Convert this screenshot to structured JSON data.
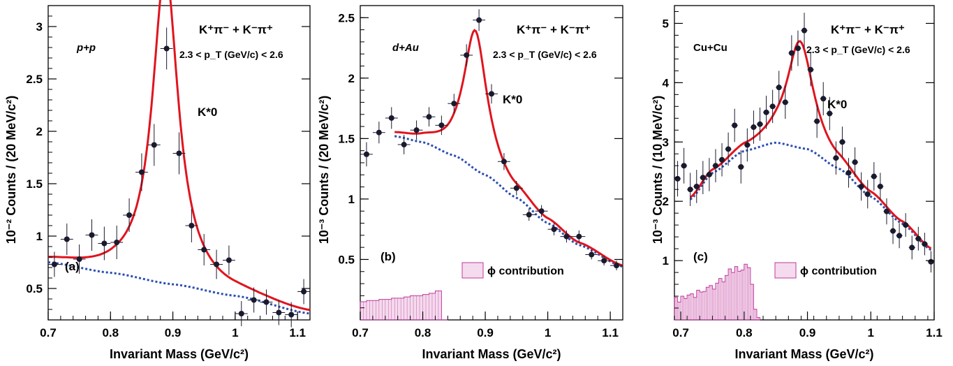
{
  "figure": {
    "colors": {
      "data": "#1a1a2e",
      "fit": "#e0141e",
      "background_fit": "#2b4eb0",
      "phi_hist": "#c03a9c"
    }
  },
  "chart_data": [
    {
      "type": "scatter",
      "panel_label": "(a)",
      "system": "p+p",
      "channel": "K⁺π⁻ + K⁻π⁺",
      "pt_range": "2.3 < p_T (GeV/c) < 2.6",
      "peak_label": "K*0",
      "xlabel": "Invariant Mass (GeV/c²)",
      "ylabel": "10⁻² Counts / (20 MeV/c²)",
      "xlim": [
        0.7,
        1.12
      ],
      "ylim": [
        0.2,
        3.2
      ],
      "xticks": [
        0.7,
        0.8,
        0.9,
        1.0,
        1.1
      ],
      "xtick_labels": [
        "0.7",
        "0.8",
        "0.9",
        "1",
        "1.1"
      ],
      "yticks": [
        0.5,
        1,
        1.5,
        2,
        2.5,
        3
      ],
      "ytick_labels": [
        "0.5",
        "1",
        "1.5",
        "2",
        "2.5",
        "3"
      ],
      "points": [
        {
          "x": 0.71,
          "y": 0.73,
          "err": 0.12
        },
        {
          "x": 0.73,
          "y": 0.97,
          "err": 0.15
        },
        {
          "x": 0.75,
          "y": 0.78,
          "err": 0.14
        },
        {
          "x": 0.77,
          "y": 1.01,
          "err": 0.15
        },
        {
          "x": 0.79,
          "y": 0.93,
          "err": 0.16
        },
        {
          "x": 0.81,
          "y": 0.94,
          "err": 0.16
        },
        {
          "x": 0.83,
          "y": 1.2,
          "err": 0.16
        },
        {
          "x": 0.85,
          "y": 1.61,
          "err": 0.18
        },
        {
          "x": 0.87,
          "y": 1.87,
          "err": 0.2
        },
        {
          "x": 0.89,
          "y": 2.79,
          "err": 0.2
        },
        {
          "x": 0.91,
          "y": 1.79,
          "err": 0.2
        },
        {
          "x": 0.93,
          "y": 1.1,
          "err": 0.16
        },
        {
          "x": 0.95,
          "y": 0.87,
          "err": 0.15
        },
        {
          "x": 0.97,
          "y": 0.73,
          "err": 0.14
        },
        {
          "x": 0.99,
          "y": 0.77,
          "err": 0.14
        },
        {
          "x": 1.01,
          "y": 0.26,
          "err": 0.12
        },
        {
          "x": 1.03,
          "y": 0.39,
          "err": 0.12
        },
        {
          "x": 1.05,
          "y": 0.37,
          "err": 0.12
        },
        {
          "x": 1.07,
          "y": 0.27,
          "err": 0.12
        },
        {
          "x": 1.09,
          "y": 0.25,
          "err": 0.12
        },
        {
          "x": 1.11,
          "y": 0.47,
          "err": 0.12
        }
      ],
      "fit": {
        "x_start": 0.7,
        "x_end": 1.12,
        "mass": 0.888,
        "width": 0.05,
        "amp": 3.0
      },
      "background": [
        [
          0.7,
          0.75
        ],
        [
          0.8,
          0.65
        ],
        [
          0.9,
          0.54
        ],
        [
          1.0,
          0.43
        ],
        [
          1.12,
          0.26
        ]
      ],
      "phi_hist": null,
      "phi_legend": ""
    },
    {
      "type": "scatter",
      "panel_label": "(b)",
      "system": "d+Au",
      "channel": "K⁺π⁻ + K⁻π⁺",
      "pt_range": "2.3 < p_T (GeV/c) < 2.6",
      "peak_label": "K*0",
      "xlabel": "Invariant Mass (GeV/c²)",
      "ylabel": "10⁻³ Counts / (20 MeV/c²)",
      "xlim": [
        0.7,
        1.12
      ],
      "ylim": [
        0.0,
        2.6
      ],
      "xticks": [
        0.7,
        0.8,
        0.9,
        1.0,
        1.1
      ],
      "xtick_labels": [
        "0.7",
        "0.8",
        "0.9",
        "1",
        "1.1"
      ],
      "yticks": [
        0.5,
        1,
        1.5,
        2,
        2.5
      ],
      "ytick_labels": [
        "0.5",
        "1",
        "1.5",
        "2",
        "2.5"
      ],
      "points": [
        {
          "x": 0.71,
          "y": 1.37,
          "err": 0.1
        },
        {
          "x": 0.73,
          "y": 1.55,
          "err": 0.09
        },
        {
          "x": 0.75,
          "y": 1.67,
          "err": 0.09
        },
        {
          "x": 0.77,
          "y": 1.45,
          "err": 0.08
        },
        {
          "x": 0.79,
          "y": 1.57,
          "err": 0.08
        },
        {
          "x": 0.81,
          "y": 1.68,
          "err": 0.08
        },
        {
          "x": 0.83,
          "y": 1.61,
          "err": 0.08
        },
        {
          "x": 0.85,
          "y": 1.79,
          "err": 0.08
        },
        {
          "x": 0.87,
          "y": 2.19,
          "err": 0.09
        },
        {
          "x": 0.89,
          "y": 2.48,
          "err": 0.09
        },
        {
          "x": 0.91,
          "y": 1.87,
          "err": 0.08
        },
        {
          "x": 0.93,
          "y": 1.31,
          "err": 0.07
        },
        {
          "x": 0.95,
          "y": 1.09,
          "err": 0.06
        },
        {
          "x": 0.97,
          "y": 0.87,
          "err": 0.05
        },
        {
          "x": 0.99,
          "y": 0.9,
          "err": 0.05
        },
        {
          "x": 1.01,
          "y": 0.75,
          "err": 0.05
        },
        {
          "x": 1.03,
          "y": 0.69,
          "err": 0.05
        },
        {
          "x": 1.05,
          "y": 0.69,
          "err": 0.05
        },
        {
          "x": 1.07,
          "y": 0.54,
          "err": 0.04
        },
        {
          "x": 1.09,
          "y": 0.49,
          "err": 0.04
        },
        {
          "x": 1.11,
          "y": 0.45,
          "err": 0.04
        }
      ],
      "fit": {
        "x_start": 0.755,
        "x_end": 1.12,
        "mass": 0.884,
        "width": 0.045,
        "amp": 1.15
      },
      "background": [
        [
          0.755,
          1.52
        ],
        [
          0.8,
          1.47
        ],
        [
          0.85,
          1.36
        ],
        [
          0.9,
          1.2
        ],
        [
          0.95,
          1.01
        ],
        [
          1.0,
          0.8
        ],
        [
          1.05,
          0.62
        ],
        [
          1.12,
          0.44
        ]
      ],
      "phi_hist": {
        "x_start": 0.7,
        "bin_width": 0.01,
        "values": [
          0.15,
          0.16,
          0.16,
          0.17,
          0.17,
          0.18,
          0.18,
          0.19,
          0.2,
          0.2,
          0.21,
          0.22,
          0.24,
          0.0
        ]
      },
      "phi_legend": "ϕ contribution"
    },
    {
      "type": "scatter",
      "panel_label": "(c)",
      "system": "Cu+Cu",
      "channel": "K⁺π⁻ + K⁻π⁺",
      "pt_range": "2.3 < p_T (GeV/c) < 2.6",
      "peak_label": "K*0",
      "xlabel": "Invariant Mass (GeV/c²)",
      "ylabel": "10⁻³ Counts / (10 MeV/c²)",
      "xlim": [
        0.69,
        1.1
      ],
      "ylim": [
        0.0,
        5.3
      ],
      "xticks": [
        0.7,
        0.8,
        0.9,
        1.0,
        1.1
      ],
      "xtick_labels": [
        "0.7",
        "0.8",
        "0.9",
        "1",
        "1.1"
      ],
      "yticks": [
        1,
        2,
        3,
        4,
        5
      ],
      "ytick_labels": [
        "1",
        "2",
        "3",
        "4",
        "5"
      ],
      "points": [
        {
          "x": 0.695,
          "y": 2.38,
          "err": 0.3
        },
        {
          "x": 0.705,
          "y": 2.6,
          "err": 0.3
        },
        {
          "x": 0.715,
          "y": 2.2,
          "err": 0.28
        },
        {
          "x": 0.725,
          "y": 2.25,
          "err": 0.28
        },
        {
          "x": 0.735,
          "y": 2.4,
          "err": 0.28
        },
        {
          "x": 0.745,
          "y": 2.45,
          "err": 0.28
        },
        {
          "x": 0.755,
          "y": 2.6,
          "err": 0.28
        },
        {
          "x": 0.765,
          "y": 2.7,
          "err": 0.28
        },
        {
          "x": 0.775,
          "y": 2.88,
          "err": 0.28
        },
        {
          "x": 0.785,
          "y": 3.28,
          "err": 0.28
        },
        {
          "x": 0.795,
          "y": 2.58,
          "err": 0.28
        },
        {
          "x": 0.805,
          "y": 2.95,
          "err": 0.28
        },
        {
          "x": 0.815,
          "y": 3.25,
          "err": 0.28
        },
        {
          "x": 0.825,
          "y": 3.3,
          "err": 0.28
        },
        {
          "x": 0.835,
          "y": 3.5,
          "err": 0.28
        },
        {
          "x": 0.845,
          "y": 3.6,
          "err": 0.28
        },
        {
          "x": 0.855,
          "y": 3.92,
          "err": 0.28
        },
        {
          "x": 0.865,
          "y": 3.67,
          "err": 0.28
        },
        {
          "x": 0.875,
          "y": 4.5,
          "err": 0.3
        },
        {
          "x": 0.885,
          "y": 4.58,
          "err": 0.3
        },
        {
          "x": 0.895,
          "y": 4.88,
          "err": 0.3
        },
        {
          "x": 0.905,
          "y": 4.22,
          "err": 0.28
        },
        {
          "x": 0.915,
          "y": 3.35,
          "err": 0.28
        },
        {
          "x": 0.925,
          "y": 3.73,
          "err": 0.28
        },
        {
          "x": 0.935,
          "y": 3.48,
          "err": 0.28
        },
        {
          "x": 0.945,
          "y": 2.73,
          "err": 0.28
        },
        {
          "x": 0.955,
          "y": 3.0,
          "err": 0.26
        },
        {
          "x": 0.965,
          "y": 2.48,
          "err": 0.25
        },
        {
          "x": 0.975,
          "y": 2.66,
          "err": 0.25
        },
        {
          "x": 0.985,
          "y": 2.25,
          "err": 0.24
        },
        {
          "x": 0.995,
          "y": 2.12,
          "err": 0.24
        },
        {
          "x": 1.005,
          "y": 2.42,
          "err": 0.24
        },
        {
          "x": 1.015,
          "y": 2.25,
          "err": 0.23
        },
        {
          "x": 1.025,
          "y": 1.83,
          "err": 0.22
        },
        {
          "x": 1.035,
          "y": 1.5,
          "err": 0.22
        },
        {
          "x": 1.045,
          "y": 1.42,
          "err": 0.21
        },
        {
          "x": 1.055,
          "y": 1.6,
          "err": 0.2
        },
        {
          "x": 1.065,
          "y": 1.22,
          "err": 0.2
        },
        {
          "x": 1.075,
          "y": 1.37,
          "err": 0.2
        },
        {
          "x": 1.085,
          "y": 1.28,
          "err": 0.19
        },
        {
          "x": 1.095,
          "y": 0.98,
          "err": 0.18
        }
      ],
      "fit": {
        "x_start": 0.715,
        "x_end": 1.095,
        "mass": 0.888,
        "width": 0.05,
        "amp": 1.8
      },
      "background": [
        [
          0.715,
          2.03
        ],
        [
          0.75,
          2.48
        ],
        [
          0.8,
          2.85
        ],
        [
          0.85,
          2.99
        ],
        [
          0.9,
          2.88
        ],
        [
          0.95,
          2.55
        ],
        [
          1.0,
          2.08
        ],
        [
          1.05,
          1.62
        ],
        [
          1.095,
          1.18
        ]
      ],
      "phi_hist": {
        "x_start": 0.69,
        "bin_width": 0.005,
        "values": [
          0.38,
          0.3,
          0.4,
          0.36,
          0.42,
          0.44,
          0.38,
          0.5,
          0.47,
          0.48,
          0.55,
          0.58,
          0.52,
          0.62,
          0.7,
          0.64,
          0.75,
          0.86,
          0.8,
          0.9,
          0.82,
          0.84,
          0.94,
          0.88,
          0.6,
          0.18,
          0.04
        ]
      },
      "phi_legend": "ϕ contribution"
    }
  ]
}
